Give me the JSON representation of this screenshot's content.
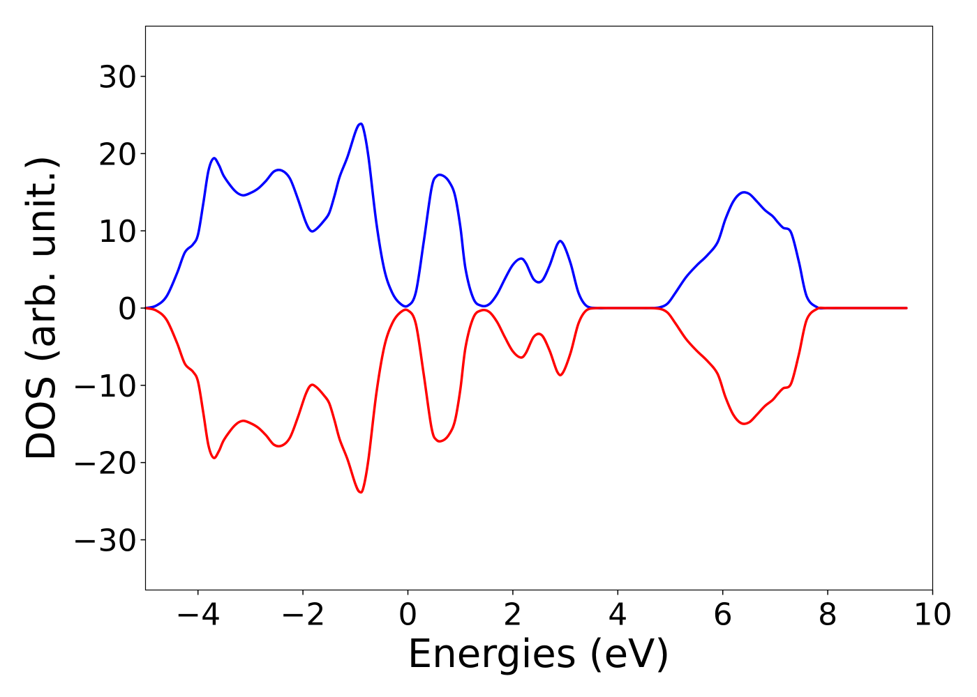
{
  "chart_data": {
    "type": "line",
    "title": "",
    "xlabel": "Energies (eV)",
    "ylabel": "DOS (arb. unit.)",
    "xlim": [
      -5,
      10
    ],
    "ylim": [
      -36.5,
      36.5
    ],
    "xticks": [
      -4,
      -2,
      0,
      2,
      4,
      6,
      8,
      10
    ],
    "xtick_labels": [
      "−4",
      "−2",
      "0",
      "2",
      "4",
      "6",
      "8",
      "10"
    ],
    "yticks": [
      -30,
      -20,
      -10,
      0,
      10,
      20,
      30
    ],
    "ytick_labels": [
      "−30",
      "−20",
      "−10",
      "0",
      "10",
      "20",
      "30"
    ],
    "grid": false,
    "legend": null,
    "series": [
      {
        "color": "#0000ff",
        "x": [
          -5.0,
          -4.8,
          -4.6,
          -4.4,
          -4.25,
          -4.1,
          -4.0,
          -3.9,
          -3.8,
          -3.7,
          -3.6,
          -3.5,
          -3.3,
          -3.15,
          -3.0,
          -2.85,
          -2.7,
          -2.55,
          -2.4,
          -2.25,
          -2.1,
          -1.95,
          -1.85,
          -1.75,
          -1.6,
          -1.5,
          -1.4,
          -1.3,
          -1.15,
          -1.0,
          -0.92,
          -0.85,
          -0.75,
          -0.6,
          -0.45,
          -0.3,
          -0.15,
          0.0,
          0.15,
          0.3,
          0.45,
          0.55,
          0.68,
          0.8,
          0.9,
          1.0,
          1.1,
          1.25,
          1.4,
          1.55,
          1.7,
          1.85,
          2.0,
          2.15,
          2.25,
          2.4,
          2.55,
          2.7,
          2.85,
          2.95,
          3.1,
          3.25,
          3.4,
          3.6,
          3.8,
          4.0,
          4.2,
          4.4,
          4.6,
          4.8,
          4.95,
          5.1,
          5.3,
          5.5,
          5.7,
          5.9,
          6.05,
          6.2,
          6.35,
          6.5,
          6.65,
          6.8,
          6.95,
          7.05,
          7.15,
          7.3,
          7.45,
          7.6,
          7.8,
          8.0,
          8.5,
          9.0,
          9.5
        ],
        "y": [
          0,
          0.3,
          1.5,
          4.5,
          7.2,
          8.2,
          9.5,
          13.5,
          17.8,
          19.4,
          18.5,
          17,
          15.2,
          14.6,
          14.9,
          15.5,
          16.5,
          17.7,
          17.8,
          16.8,
          14.2,
          11.2,
          10,
          10.2,
          11.3,
          12.3,
          14.5,
          17,
          19.6,
          22.8,
          23.8,
          23.3,
          19.5,
          11,
          5,
          2,
          0.6,
          0.3,
          2,
          8.5,
          15.5,
          17.1,
          17.1,
          16.2,
          14.5,
          10.5,
          5,
          1.2,
          0.3,
          0.5,
          1.8,
          3.8,
          5.6,
          6.4,
          5.8,
          3.7,
          3.5,
          5.5,
          8.3,
          8.4,
          5.8,
          2,
          0.3,
          0,
          0,
          0,
          0,
          0,
          0,
          0.1,
          0.6,
          2,
          4,
          5.5,
          6.8,
          8.5,
          11.5,
          13.8,
          14.9,
          14.8,
          13.8,
          12.7,
          11.9,
          11.1,
          10.4,
          9.8,
          6,
          1.5,
          0.1,
          0,
          0,
          0,
          0
        ]
      },
      {
        "color": "#ff0000",
        "x": [
          -5.0,
          -4.8,
          -4.6,
          -4.4,
          -4.25,
          -4.1,
          -4.0,
          -3.9,
          -3.8,
          -3.7,
          -3.6,
          -3.5,
          -3.3,
          -3.15,
          -3.0,
          -2.85,
          -2.7,
          -2.55,
          -2.4,
          -2.25,
          -2.1,
          -1.95,
          -1.85,
          -1.75,
          -1.6,
          -1.5,
          -1.4,
          -1.3,
          -1.15,
          -1.0,
          -0.92,
          -0.85,
          -0.75,
          -0.6,
          -0.45,
          -0.3,
          -0.15,
          0.0,
          0.15,
          0.3,
          0.45,
          0.55,
          0.68,
          0.8,
          0.9,
          1.0,
          1.1,
          1.25,
          1.4,
          1.55,
          1.7,
          1.85,
          2.0,
          2.15,
          2.25,
          2.4,
          2.55,
          2.7,
          2.85,
          2.95,
          3.1,
          3.25,
          3.4,
          3.6,
          3.8,
          4.0,
          4.2,
          4.4,
          4.6,
          4.8,
          4.95,
          5.1,
          5.3,
          5.5,
          5.7,
          5.9,
          6.05,
          6.2,
          6.35,
          6.5,
          6.65,
          6.8,
          6.95,
          7.05,
          7.15,
          7.3,
          7.45,
          7.6,
          7.8,
          8.0,
          8.5,
          9.0,
          9.5
        ],
        "y": [
          0,
          -0.3,
          -1.5,
          -4.5,
          -7.2,
          -8.2,
          -9.5,
          -13.5,
          -17.8,
          -19.4,
          -18.5,
          -17,
          -15.2,
          -14.6,
          -14.9,
          -15.5,
          -16.5,
          -17.7,
          -17.8,
          -16.8,
          -14.2,
          -11.2,
          -10,
          -10.2,
          -11.3,
          -12.3,
          -14.5,
          -17,
          -19.6,
          -22.8,
          -23.8,
          -23.3,
          -19.5,
          -11,
          -5,
          -2,
          -0.6,
          -0.3,
          -2,
          -8.5,
          -15.5,
          -17.1,
          -17.1,
          -16.2,
          -14.5,
          -10.5,
          -5,
          -1.2,
          -0.3,
          -0.5,
          -1.8,
          -3.8,
          -5.6,
          -6.4,
          -5.8,
          -3.7,
          -3.5,
          -5.5,
          -8.3,
          -8.4,
          -5.8,
          -2,
          -0.3,
          0,
          0,
          0,
          0,
          0,
          0,
          -0.1,
          -0.6,
          -2,
          -4,
          -5.5,
          -6.8,
          -8.5,
          -11.5,
          -13.8,
          -14.9,
          -14.8,
          -13.8,
          -12.7,
          -11.9,
          -11.1,
          -10.4,
          -9.8,
          -6,
          -1.5,
          -0.1,
          0,
          0,
          0,
          0
        ]
      }
    ]
  }
}
